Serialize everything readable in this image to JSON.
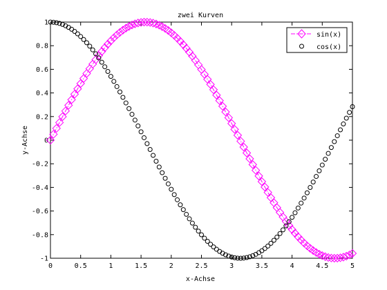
{
  "chart_data": {
    "type": "line",
    "title": "zwei Kurven",
    "xlabel": "x-Achse",
    "ylabel": "y-Achse",
    "xlim": [
      0,
      5
    ],
    "ylim": [
      -1,
      1
    ],
    "grid": false,
    "legend_position": "top-right",
    "x_ticks": [
      0,
      0.5,
      1,
      1.5,
      2,
      2.5,
      3,
      3.5,
      4,
      4.5,
      5
    ],
    "x_tick_labels": [
      "0",
      "0.5",
      "1",
      "1.5",
      "2",
      "2.5",
      "3",
      "3.5",
      "4",
      "4.5",
      "5"
    ],
    "y_ticks": [
      -1,
      -0.8,
      -0.6,
      -0.4,
      -0.2,
      0,
      0.2,
      0.4,
      0.6,
      0.8,
      1
    ],
    "y_tick_labels": [
      "-1",
      "-0.8",
      "-0.6",
      "-0.4",
      "-0.2",
      "0",
      "0.2",
      "0.4",
      "0.6",
      "0.8",
      "1"
    ],
    "x": {
      "start": 0,
      "stop": 5,
      "step": 0.05
    },
    "series": [
      {
        "name": "sin(x)",
        "function": "sin",
        "color": "#ff00ff",
        "marker": "diamond",
        "line": "dash-dot"
      },
      {
        "name": "cos(x)",
        "function": "cos",
        "color": "#000000",
        "marker": "circle",
        "line": "none"
      }
    ]
  }
}
